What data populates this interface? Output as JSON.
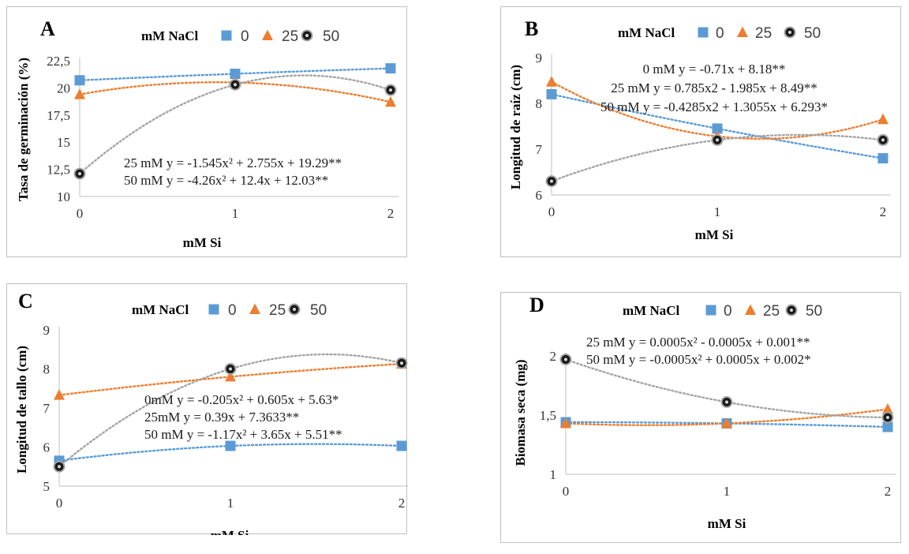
{
  "legend_title": "mM NaCl",
  "legend_labels": [
    "0",
    "25",
    "50"
  ],
  "series_colors": [
    "#5b9bd5",
    "#ed7d31",
    "#a5a5a5"
  ],
  "chart_data": [
    {
      "panel": "A",
      "type": "scatter",
      "xlabel": "mM Si",
      "ylabel": "Tasa de germinación (%)",
      "x": [
        0,
        1,
        2
      ],
      "x_ticks": [
        "0",
        "1",
        "2"
      ],
      "ylim": [
        10,
        22.5
      ],
      "y_ticks": [
        "10",
        "12,5",
        "15",
        "17,5",
        "20",
        "22,5"
      ],
      "series": [
        {
          "name": "0",
          "values": [
            20.7,
            21.3,
            21.8
          ]
        },
        {
          "name": "25",
          "values": [
            19.4,
            20.5,
            18.7
          ]
        },
        {
          "name": "50",
          "values": [
            12.1,
            20.3,
            19.8
          ]
        }
      ],
      "equations": [
        "25 mM y = -1.545x² + 2.755x + 19.29**",
        "50 mM y = -4.26x² + 12.4x + 12.03**"
      ]
    },
    {
      "panel": "B",
      "type": "scatter",
      "xlabel": "mM Si",
      "ylabel": "Longitud de raíz (cm)",
      "x": [
        0,
        1,
        2
      ],
      "x_ticks": [
        "0",
        "1",
        "2"
      ],
      "ylim": [
        6,
        9
      ],
      "y_ticks": [
        "6",
        "7",
        "8",
        "9"
      ],
      "series": [
        {
          "name": "0",
          "values": [
            8.2,
            7.45,
            6.8
          ]
        },
        {
          "name": "25",
          "values": [
            8.47,
            7.28,
            7.65
          ]
        },
        {
          "name": "50",
          "values": [
            6.3,
            7.2,
            7.2
          ]
        }
      ],
      "equations": [
        "0 mM y = -0.71x + 8.18**",
        "25 mM y = 0.785x2 - 1.985x + 8.49**",
        "50 mM y = -0.4285x2 + 1.3055x + 6.293*"
      ]
    },
    {
      "panel": "C",
      "type": "scatter",
      "xlabel": "mM Si",
      "ylabel": "Longitud de tallo (cm)",
      "x": [
        0,
        1,
        2
      ],
      "x_ticks": [
        "0",
        "1",
        "2"
      ],
      "ylim": [
        5,
        9
      ],
      "y_ticks": [
        "5",
        "6",
        "7",
        "8",
        "9"
      ],
      "series": [
        {
          "name": "0",
          "values": [
            5.65,
            6.03,
            6.03
          ]
        },
        {
          "name": "25",
          "values": [
            7.33,
            7.8,
            8.13
          ]
        },
        {
          "name": "50",
          "values": [
            5.5,
            8.0,
            8.15
          ]
        }
      ],
      "equations": [
        "0mM y = -0.205x² + 0.605x + 5.63*",
        "25mM y = 0.39x + 7.3633**",
        "50 mM y = -1.17x² + 3.65x + 5.51**"
      ]
    },
    {
      "panel": "D",
      "type": "scatter",
      "xlabel": "mM Si",
      "ylabel": "Biomasa seca (mg)",
      "x": [
        0,
        1,
        2
      ],
      "x_ticks": [
        "0",
        "1",
        "2"
      ],
      "ylim": [
        1,
        2
      ],
      "y_ticks": [
        "1",
        "1,5",
        "2"
      ],
      "series": [
        {
          "name": "0",
          "values": [
            1.44,
            1.43,
            1.4
          ]
        },
        {
          "name": "25",
          "values": [
            1.43,
            1.43,
            1.55
          ]
        },
        {
          "name": "50",
          "values": [
            1.97,
            1.61,
            1.48
          ]
        }
      ],
      "equations": [
        "25 mM y = 0.0005x² - 0.0005x + 0.001**",
        "50 mM y = -0.0005x² + 0.0005x + 0.002*"
      ]
    }
  ]
}
